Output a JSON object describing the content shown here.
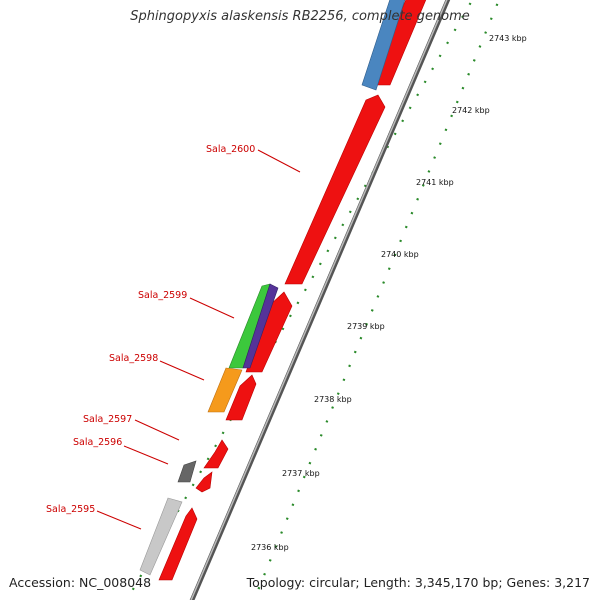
{
  "title": "Sphingopyxis alaskensis RB2256, complete genome",
  "footer": {
    "accession": "Accession: NC_008048",
    "summary": "Topology: circular; Length: 3,345,170 bp; Genes: 3,217"
  },
  "ticks": [
    "2743 kbp",
    "2742 kbp",
    "2741 kbp",
    "2740 kbp",
    "2739 kbp",
    "2738 kbp",
    "2737 kbp",
    "2736 kbp"
  ],
  "gene_labels": [
    "Sala_2600",
    "Sala_2599",
    "Sala_2598",
    "Sala_2597",
    "Sala_2596",
    "Sala_2595"
  ],
  "colors": {
    "forward_gene": "#ee1111",
    "reverse_red": "#ee1111",
    "blue": "#4a86c0",
    "green": "#3cc83c",
    "purple": "#553399",
    "orange": "#f59a1c",
    "dark_gray": "#666666",
    "light_gray": "#c8c8c8",
    "backbone": "#888888",
    "ticks": "#2a8a2a",
    "label": "#cc0000"
  }
}
